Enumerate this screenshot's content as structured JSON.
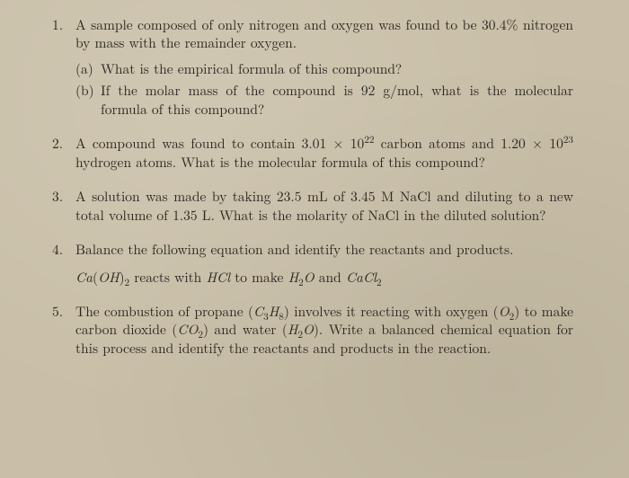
{
  "colors": {
    "paper": "#c9bfa8",
    "ink": "#2c2620"
  },
  "typography": {
    "family_serif": "Times-like (Computer Modern)",
    "body_size_pt": 12,
    "line_height": 1.32
  },
  "problems": [
    {
      "n": "1",
      "text": "A sample composed of only nitrogen and oxygen was found to be 30.4% nitrogen by mass with the remainder oxygen.",
      "sub": [
        {
          "marker": "(a)",
          "text": "What is the empirical formula of this compound?"
        },
        {
          "marker": "(b)",
          "text": "If the molar mass of the compound is 92 g/mol, what is the molecular formula of this compound?"
        }
      ]
    },
    {
      "n": "2",
      "text_html": "A compound was found to contain 3.01 × 10<span class=\"sup\">22</span> carbon atoms and 1.20 × 10<span class=\"sup\">23</span> hydrogen atoms. What is the molecular formula of this compound?"
    },
    {
      "n": "3",
      "text": "A solution was made by taking 23.5 mL of 3.45 M NaCl and diluting to a new total volume of 1.35 L. What is the molarity of NaCl in the diluted solution?"
    },
    {
      "n": "4",
      "text": "Balance the following equation and identify the reactants and products.",
      "eq_html": "<i>Ca</i>(<i>OH</i>)<span class=\"sub2\">2</span> reacts with <i>HCl</i> to make <i>H</i><span class=\"sub2\">2</span><i>O</i> and <i>CaCl</i><span class=\"sub2\">2</span>"
    },
    {
      "n": "5",
      "text_html": "The combustion of propane (<i>C</i><span class=\"sub2\">3</span><i>H</i><span class=\"sub2\">8</span>) involves it reacting with oxygen (<i>O</i><span class=\"sub2\">2</span>) to make carbon dioxide (<i>CO</i><span class=\"sub2\">2</span>) and water (<i>H</i><span class=\"sub2\">2</span><i>O</i>). Write a balanced chemical equation for this process and identify the reactants and products in the reaction."
    }
  ]
}
